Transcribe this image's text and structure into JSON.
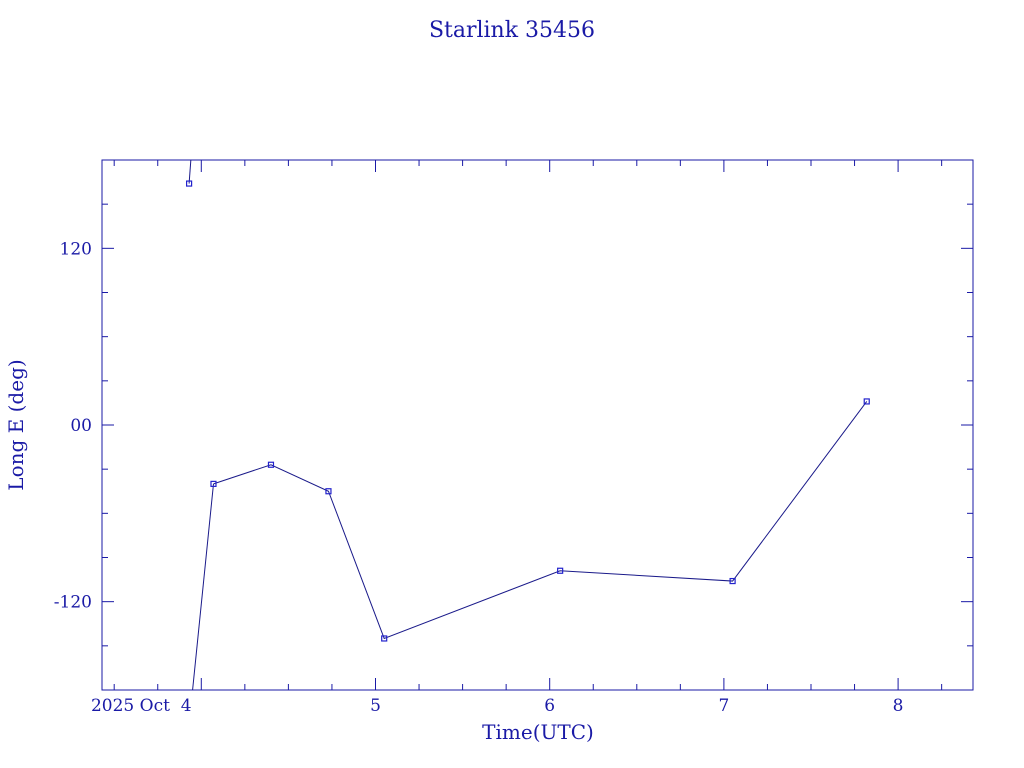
{
  "chart_data": {
    "type": "line",
    "title": "Starlink 35456",
    "xlabel": "Time(UTC)",
    "ylabel": "Long E (deg)",
    "x_axis": {
      "unit": "day of October 2025",
      "range": [
        3.43,
        8.43
      ],
      "ticks": [
        {
          "value": 4,
          "label": "2025 Oct  4"
        },
        {
          "value": 5,
          "label": "5"
        },
        {
          "value": 6,
          "label": "6"
        },
        {
          "value": 7,
          "label": "7"
        },
        {
          "value": 8,
          "label": "8"
        }
      ],
      "minor_step": 0.25
    },
    "y_axis": {
      "range": [
        -180,
        180
      ],
      "ticks": [
        {
          "value": 120,
          "label": "120"
        },
        {
          "value": 0,
          "label": "00"
        },
        {
          "value": -120,
          "label": "-120"
        }
      ],
      "minor_step": 30
    },
    "grid": false,
    "series": [
      {
        "points": [
          {
            "x": 4.07,
            "y": -40
          },
          {
            "x": 4.4,
            "y": -27
          },
          {
            "x": 4.73,
            "y": -45
          },
          {
            "x": 5.05,
            "y": -145
          },
          {
            "x": 6.06,
            "y": -99
          },
          {
            "x": 7.05,
            "y": -106
          },
          {
            "x": 7.82,
            "y": 16
          }
        ],
        "wrap_segments": [
          {
            "from": {
              "x": 3.93,
              "y": 164
            },
            "to": {
              "x": 3.94,
              "y": 180
            }
          },
          {
            "from": {
              "x": 3.95,
              "y": -180
            },
            "to": {
              "x": 4.07,
              "y": -40
            }
          }
        ],
        "start_point": {
          "x": 3.93,
          "y": 164
        }
      }
    ],
    "colors": {
      "axis": "#1a1aa6",
      "line": "#1a1a8a",
      "marker": "#2222cc"
    }
  }
}
